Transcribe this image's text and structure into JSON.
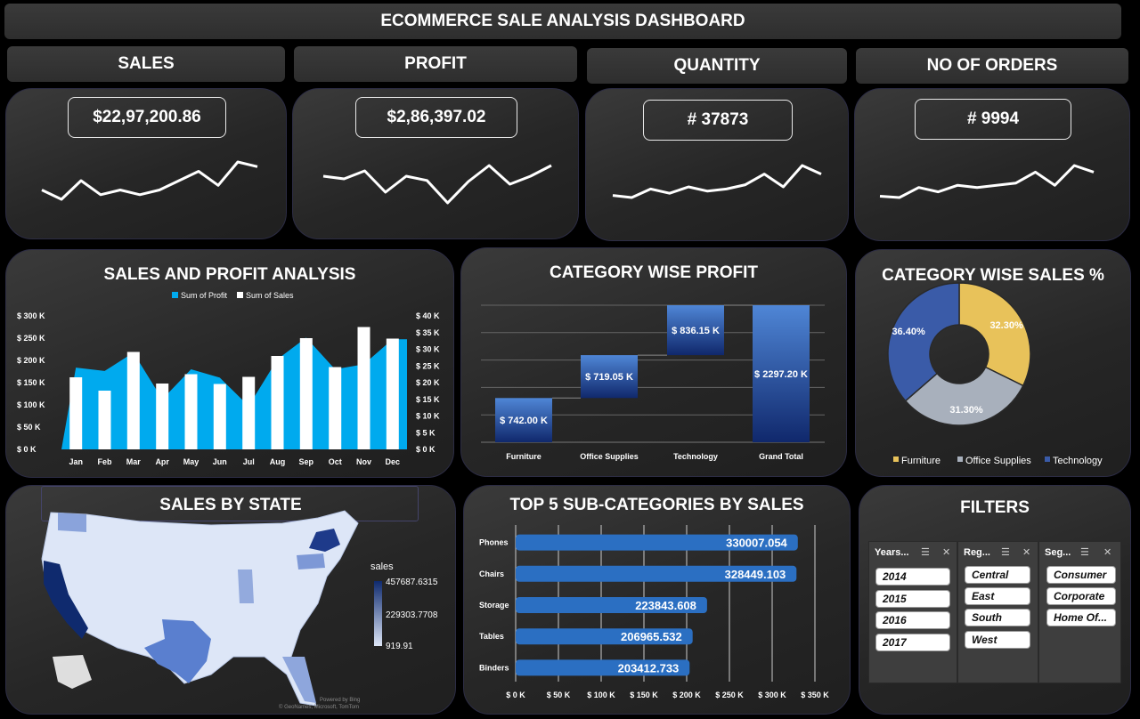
{
  "header": {
    "title": "ECOMMERCE SALE ANALYSIS DASHBOARD"
  },
  "kpis": [
    {
      "label": "SALES",
      "value": "$22,97,200.86",
      "spark": [
        4,
        2,
        6,
        3,
        4,
        3,
        4,
        6,
        8,
        5,
        10,
        9
      ]
    },
    {
      "label": "PROFIT",
      "value": "$2,86,397.02",
      "spark": [
        6,
        5.5,
        7,
        3,
        6,
        5.2,
        1,
        5,
        8,
        4.5,
        6,
        8
      ]
    },
    {
      "label": "QUANTITY",
      "value": "# 37873",
      "spark": [
        2,
        1.5,
        3.5,
        2.5,
        4,
        3,
        3.5,
        4.5,
        7,
        4,
        9,
        7
      ]
    },
    {
      "label": "NO OF ORDERS",
      "value": "# 9994",
      "spark": [
        2,
        1.7,
        4,
        3,
        4.5,
        4,
        4.5,
        5,
        7.5,
        4.5,
        9,
        7.5
      ]
    }
  ],
  "sales_profit": {
    "title": "SALES AND PROFIT ANALYSIS",
    "legend_profit": "Sum of Profit",
    "legend_sales": "Sum of Sales",
    "color_profit": "#00aaee",
    "color_sales": "#ffffff",
    "left_ticks": [
      "$ 300 K",
      "$ 250 K",
      "$ 200 K",
      "$ 150 K",
      "$ 100 K",
      "$ 50 K",
      "$ 0 K"
    ],
    "right_ticks": [
      "$ 40 K",
      "$ 35 K",
      "$ 30 K",
      "$ 25 K",
      "$ 20 K",
      "$ 15 K",
      "$ 10 K",
      "$ 5 K",
      "$ 0 K"
    ]
  },
  "category_profit": {
    "title": "CATEGORY WISE PROFIT",
    "bars": [
      {
        "cat": "Furniture",
        "label": "$ 742.00 K"
      },
      {
        "cat": "Office Supplies",
        "label": "$ 719.05 K"
      },
      {
        "cat": "Technology",
        "label": "$ 836.15 K"
      },
      {
        "cat": "Grand Total",
        "label": "$ 2297.20 K"
      }
    ]
  },
  "category_sales": {
    "title": "CATEGORY WISE SALES %",
    "slices": [
      {
        "name": "Furniture",
        "label": "32.30%",
        "color": "#e8c25a"
      },
      {
        "name": "Office Supplies",
        "label": "31.30%",
        "color": "#a8b0bc"
      },
      {
        "name": "Technology",
        "label": "36.40%",
        "color": "#3a5ba8"
      }
    ]
  },
  "state_map": {
    "title": "SALES BY STATE",
    "legend_title": "sales",
    "legend_max": "457687.6315",
    "legend_mid": "229303.7708",
    "legend_min": "919.91",
    "credit1": "Powered by Bing",
    "credit2": "© GeoNames, Microsoft, TomTom"
  },
  "top5": {
    "title": "TOP 5 SUB-CATEGORIES BY SALES",
    "x_ticks": [
      "$ 0 K",
      "$ 50 K",
      "$ 100 K",
      "$ 150 K",
      "$ 200 K",
      "$ 250 K",
      "$ 300 K",
      "$ 350 K"
    ]
  },
  "filters": {
    "title": "FILTERS",
    "years": {
      "head": "Years...",
      "items": [
        "2014",
        "2015",
        "2016",
        "2017"
      ]
    },
    "region": {
      "head": "Reg...",
      "items": [
        "Central",
        "East",
        "South",
        "West"
      ]
    },
    "segment": {
      "head": "Seg...",
      "items": [
        "Consumer",
        "Corporate",
        "Home Of..."
      ]
    }
  },
  "chart_data": [
    {
      "type": "bar",
      "title": "SALES AND PROFIT ANALYSIS",
      "categories": [
        "Jan",
        "Feb",
        "Mar",
        "Apr",
        "May",
        "Jun",
        "Jul",
        "Aug",
        "Sep",
        "Oct",
        "Nov",
        "Dec"
      ],
      "series": [
        {
          "name": "Sum of Sales",
          "axis": "left",
          "values": [
            162,
            132,
            219,
            148,
            169,
            147,
            163,
            210,
            250,
            185,
            275,
            249
          ]
        },
        {
          "name": "Sum of Profit",
          "axis": "right",
          "values": [
            24.5,
            23.5,
            29,
            15,
            24,
            21.5,
            13,
            27,
            33.5,
            24,
            25.5,
            33
          ]
        }
      ],
      "ylim_left": [
        0,
        300
      ],
      "ylim_right": [
        0,
        40
      ]
    },
    {
      "type": "bar",
      "title": "CATEGORY WISE PROFIT",
      "categories": [
        "Furniture",
        "Office Supplies",
        "Technology",
        "Grand Total"
      ],
      "values": [
        742.0,
        719.05,
        836.15,
        2297.2
      ]
    },
    {
      "type": "pie",
      "title": "CATEGORY WISE SALES %",
      "categories": [
        "Furniture",
        "Office Supplies",
        "Technology"
      ],
      "values": [
        32.3,
        31.3,
        36.4
      ]
    },
    {
      "type": "bar",
      "title": "TOP 5 SUB-CATEGORIES BY SALES",
      "categories": [
        "Phones",
        "Chairs",
        "Storage",
        "Tables",
        "Binders"
      ],
      "values": [
        330007.054,
        328449.103,
        223843.608,
        206965.532,
        203412.733
      ],
      "xlim": [
        0,
        350000
      ]
    }
  ]
}
